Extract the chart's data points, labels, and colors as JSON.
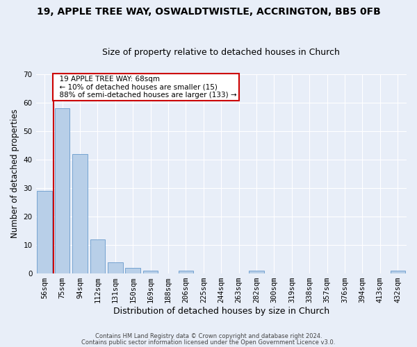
{
  "title1": "19, APPLE TREE WAY, OSWALDTWISTLE, ACCRINGTON, BB5 0FB",
  "title2": "Size of property relative to detached houses in Church",
  "xlabel": "Distribution of detached houses by size in Church",
  "ylabel": "Number of detached properties",
  "categories": [
    "56sqm",
    "75sqm",
    "94sqm",
    "112sqm",
    "131sqm",
    "150sqm",
    "169sqm",
    "188sqm",
    "206sqm",
    "225sqm",
    "244sqm",
    "263sqm",
    "282sqm",
    "300sqm",
    "319sqm",
    "338sqm",
    "357sqm",
    "376sqm",
    "394sqm",
    "413sqm",
    "432sqm"
  ],
  "values": [
    29,
    58,
    42,
    12,
    4,
    2,
    1,
    0,
    1,
    0,
    0,
    0,
    1,
    0,
    0,
    0,
    0,
    0,
    0,
    0,
    1
  ],
  "bar_color": "#b8cfe8",
  "bar_edge_color": "#6699cc",
  "ylim": [
    0,
    70
  ],
  "yticks": [
    0,
    10,
    20,
    30,
    40,
    50,
    60,
    70
  ],
  "property_label": "19 APPLE TREE WAY: 68sqm",
  "annotation_line1": "← 10% of detached houses are smaller (15)",
  "annotation_line2": "88% of semi-detached houses are larger (133) →",
  "footnote1": "Contains HM Land Registry data © Crown copyright and database right 2024.",
  "footnote2": "Contains public sector information licensed under the Open Government Licence v3.0.",
  "bg_color": "#e8eef8",
  "plot_bg_color": "#e8eef8",
  "grid_color": "#ffffff",
  "red_color": "#cc0000",
  "title1_fontsize": 10,
  "title2_fontsize": 9,
  "axis_label_fontsize": 8.5,
  "tick_fontsize": 7.5,
  "footnote_fontsize": 6,
  "annot_fontsize": 7.5
}
